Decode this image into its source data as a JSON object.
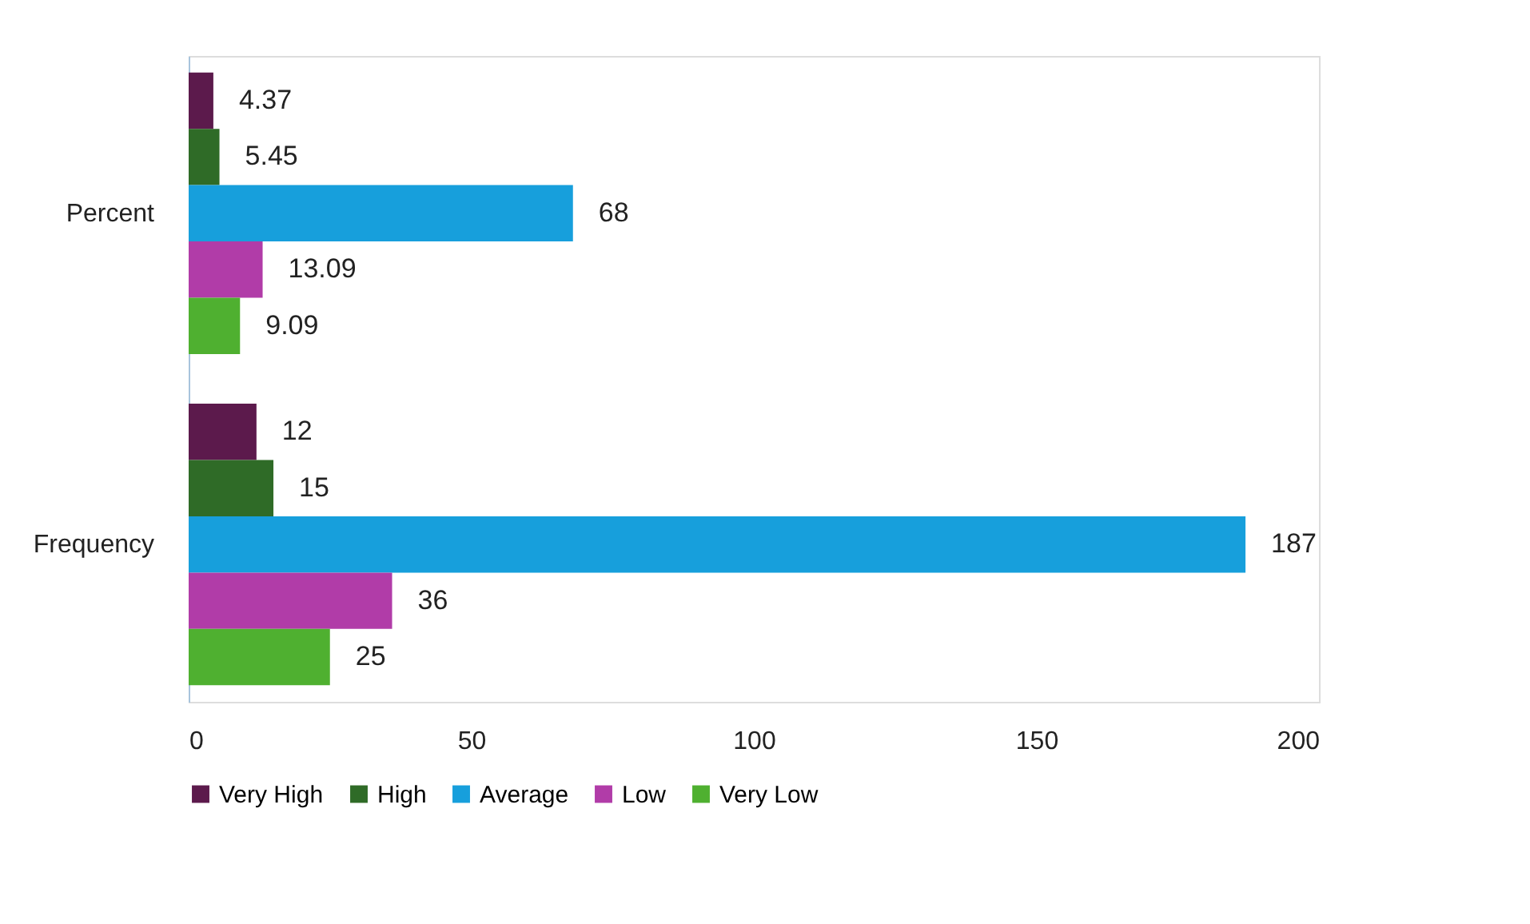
{
  "chart_data": {
    "type": "bar",
    "orientation": "horizontal",
    "categories": [
      "Percent",
      "Frequency"
    ],
    "series": [
      {
        "name": "Very High",
        "color": "#5c1a4c",
        "values": [
          4.37,
          12
        ]
      },
      {
        "name": "High",
        "color": "#2f6b27",
        "values": [
          5.45,
          15
        ]
      },
      {
        "name": "Average",
        "color": "#179fdc",
        "values": [
          68,
          187
        ]
      },
      {
        "name": "Low",
        "color": "#b13ca8",
        "values": [
          13.09,
          36
        ]
      },
      {
        "name": "Very Low",
        "color": "#4fb030",
        "values": [
          9.09,
          25
        ]
      }
    ],
    "xlim": [
      0,
      200
    ],
    "xticks": [
      0,
      50,
      100,
      150,
      200
    ],
    "data_labels": true,
    "legend": "bottom",
    "grid": false
  }
}
